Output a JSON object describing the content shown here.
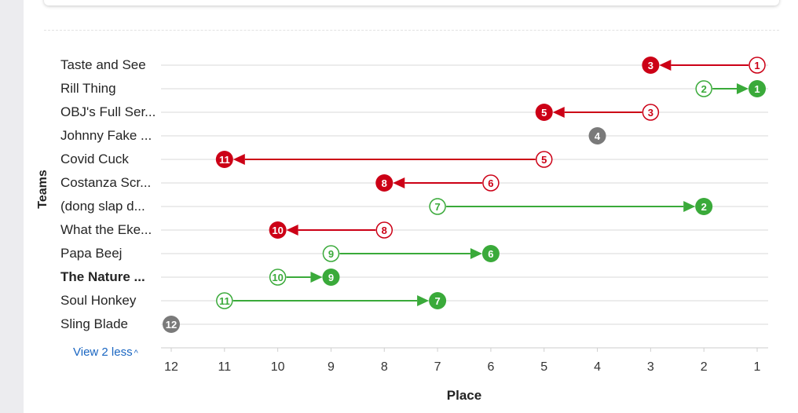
{
  "chart_data": {
    "type": "dumbbell",
    "xlabel": "Place",
    "ylabel": "Teams",
    "xlim": [
      12,
      1
    ],
    "x_ticks": [
      "12",
      "11",
      "10",
      "9",
      "8",
      "7",
      "6",
      "5",
      "4",
      "3",
      "2",
      "1"
    ],
    "teams": [
      {
        "name": "Taste and See",
        "from": 1,
        "to": 3,
        "status": "down",
        "bold": false
      },
      {
        "name": "Rill Thing",
        "from": 2,
        "to": 1,
        "status": "up",
        "bold": false
      },
      {
        "name": "OBJ's Full Ser...",
        "from": 3,
        "to": 5,
        "status": "down",
        "bold": false
      },
      {
        "name": "Johnny Fake ...",
        "from": 4,
        "to": 4,
        "status": "same",
        "bold": false
      },
      {
        "name": "Covid Cuck",
        "from": 5,
        "to": 11,
        "status": "down",
        "bold": false
      },
      {
        "name": "Costanza Scr...",
        "from": 6,
        "to": 8,
        "status": "down",
        "bold": false
      },
      {
        "name": "(dong slap d...",
        "from": 7,
        "to": 2,
        "status": "up",
        "bold": false
      },
      {
        "name": "What the Eke...",
        "from": 8,
        "to": 10,
        "status": "down",
        "bold": false
      },
      {
        "name": "Papa Beej",
        "from": 9,
        "to": 6,
        "status": "up",
        "bold": false
      },
      {
        "name": "The Nature ...",
        "from": 10,
        "to": 9,
        "status": "up",
        "bold": true
      },
      {
        "name": "Soul Honkey",
        "from": 11,
        "to": 7,
        "status": "up",
        "bold": false
      },
      {
        "name": "Sling Blade",
        "from": 12,
        "to": 12,
        "status": "same",
        "bold": false
      }
    ],
    "colors": {
      "up": "#3aaa3a",
      "down": "#cc0016",
      "same": "#7a7a7a"
    }
  },
  "controls": {
    "view_less_label": "View 2 less",
    "view_less_icon": "chevron-up-icon"
  }
}
